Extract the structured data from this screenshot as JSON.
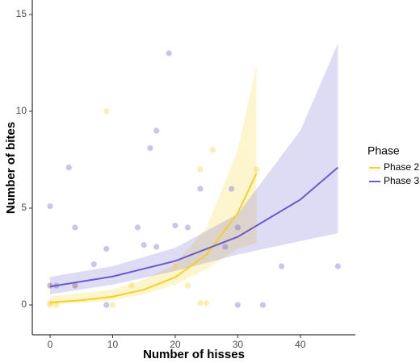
{
  "chart_data": {
    "type": "scatter",
    "x_label": "Number of hisses",
    "y_label": "Number of bites",
    "legend_title": "Phase",
    "legend_position": "right",
    "xlim": [
      -2.84,
      48.8
    ],
    "xticks": [
      0,
      10,
      20,
      30,
      40
    ],
    "ylim": [
      -1.54,
      15.75
    ],
    "yticks": [
      0,
      5,
      10,
      15
    ],
    "grid": false,
    "series": [
      {
        "name": "Phase 2",
        "color": "#f5d21f",
        "x": [
          0,
          0,
          0,
          1,
          4,
          9,
          10,
          13,
          20,
          22,
          24,
          24,
          25,
          26,
          33
        ],
        "values": [
          0,
          0.1,
          1,
          0,
          1,
          10,
          0,
          1,
          2,
          1,
          7,
          0.1,
          0.1,
          8,
          7
        ],
        "fit_x": [
          0,
          5,
          10,
          15,
          20,
          25,
          30,
          33
        ],
        "fit": [
          0.13,
          0.24,
          0.43,
          0.79,
          1.43,
          2.6,
          4.74,
          6.8
        ],
        "fit_lower": [
          0.03,
          0.1,
          0.25,
          0.55,
          1.05,
          1.85,
          2.9,
          3.2
        ],
        "fit_upper": [
          0.45,
          0.6,
          0.8,
          1.3,
          2.1,
          4.0,
          8.0,
          12.4
        ]
      },
      {
        "name": "Phase 3",
        "color": "#6a5acd",
        "x": [
          0,
          0,
          1,
          3,
          4,
          4,
          7,
          9,
          9,
          14,
          15,
          16,
          17,
          17,
          19,
          20,
          22,
          24,
          28,
          29,
          30,
          30,
          34,
          37,
          46
        ],
        "values": [
          5.1,
          1,
          1,
          7.1,
          4,
          1,
          2.1,
          2.9,
          0,
          4,
          3.1,
          8.1,
          3,
          9,
          13,
          4.1,
          4,
          6,
          3,
          6,
          4,
          0,
          0,
          2,
          2
        ],
        "fit_x": [
          0,
          10,
          20,
          30,
          40,
          46
        ],
        "fit": [
          0.95,
          1.47,
          2.27,
          3.52,
          5.44,
          7.1
        ],
        "fit_lower": [
          0.55,
          1.05,
          1.75,
          2.6,
          3.3,
          3.7
        ],
        "fit_upper": [
          1.45,
          2.0,
          2.95,
          4.7,
          9.0,
          13.5
        ]
      }
    ]
  }
}
